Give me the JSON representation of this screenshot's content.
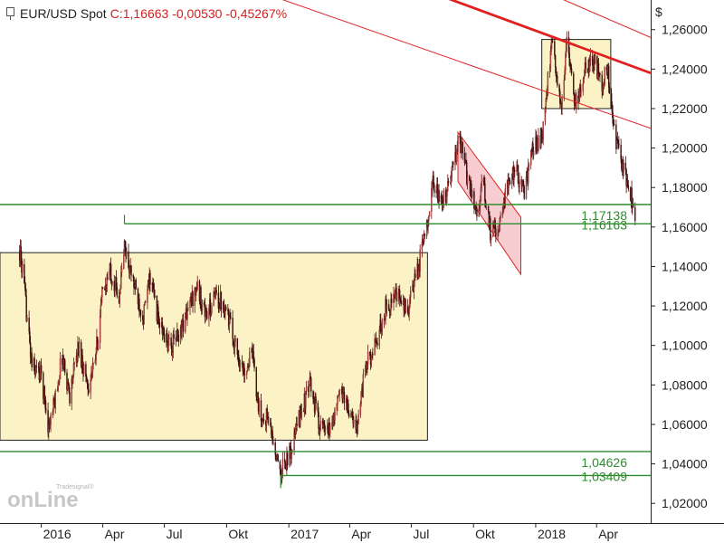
{
  "header": {
    "instrument": "EUR/USD Spot",
    "change": "C:1,16663 -0,00530 -0,45267%"
  },
  "colors": {
    "background": "#ffffff",
    "up_candle": "#6b1a1a",
    "down_candle": "#3a0d0d",
    "level_line": "#2e8b2e",
    "level_label": "#2e8b2e",
    "box_fill": "#fbf3c6",
    "box_stroke": "#222222",
    "channel_fill": "#f5b8bd",
    "trend_line": "#e02020",
    "header_change": "#d42020"
  },
  "watermark": {
    "small": "Tradesignal®",
    "brand": "onLine"
  },
  "chart_data": {
    "type": "candlestick",
    "title": "EUR/USD Spot",
    "ylabel": "$",
    "ylim": [
      1.01,
      1.275
    ],
    "x_range": [
      "2015-11-01",
      "2018-06-20"
    ],
    "y_ticks": [
      {
        "value": 1.02,
        "label": "1,02000"
      },
      {
        "value": 1.04,
        "label": "1,04000"
      },
      {
        "value": 1.06,
        "label": "1,06000"
      },
      {
        "value": 1.08,
        "label": "1,08000"
      },
      {
        "value": 1.1,
        "label": "1,10000"
      },
      {
        "value": 1.12,
        "label": "1,12000"
      },
      {
        "value": 1.14,
        "label": "1,14000"
      },
      {
        "value": 1.16,
        "label": "1,16000"
      },
      {
        "value": 1.18,
        "label": "1,18000"
      },
      {
        "value": 1.2,
        "label": "1,20000"
      },
      {
        "value": 1.22,
        "label": "1,22000"
      },
      {
        "value": 1.24,
        "label": "1,24000"
      },
      {
        "value": 1.26,
        "label": "1,26000"
      }
    ],
    "x_ticks": [
      {
        "date": "2016-01-01",
        "label": "2016"
      },
      {
        "date": "2016-04-01",
        "label": "Apr"
      },
      {
        "date": "2016-07-01",
        "label": "Jul"
      },
      {
        "date": "2016-10-01",
        "label": "Okt"
      },
      {
        "date": "2017-01-01",
        "label": "2017"
      },
      {
        "date": "2017-04-01",
        "label": "Apr"
      },
      {
        "date": "2017-07-01",
        "label": "Jul"
      },
      {
        "date": "2017-10-01",
        "label": "Okt"
      },
      {
        "date": "2018-01-01",
        "label": "2018"
      },
      {
        "date": "2018-04-01",
        "label": "Apr"
      }
    ],
    "price_path": [
      [
        "2015-11-30",
        1.148
      ],
      [
        "2015-12-04",
        1.138
      ],
      [
        "2015-12-18",
        1.09
      ],
      [
        "2016-01-01",
        1.085
      ],
      [
        "2016-01-12",
        1.058
      ],
      [
        "2016-01-20",
        1.07
      ],
      [
        "2016-02-01",
        1.095
      ],
      [
        "2016-02-12",
        1.075
      ],
      [
        "2016-02-25",
        1.1
      ],
      [
        "2016-03-10",
        1.08
      ],
      [
        "2016-03-20",
        1.09
      ],
      [
        "2016-03-31",
        1.125
      ],
      [
        "2016-04-12",
        1.138
      ],
      [
        "2016-04-25",
        1.125
      ],
      [
        "2016-05-03",
        1.15
      ],
      [
        "2016-05-15",
        1.133
      ],
      [
        "2016-05-31",
        1.115
      ],
      [
        "2016-06-10",
        1.135
      ],
      [
        "2016-06-24",
        1.11
      ],
      [
        "2016-07-10",
        1.098
      ],
      [
        "2016-07-25",
        1.108
      ],
      [
        "2016-08-18",
        1.13
      ],
      [
        "2016-09-01",
        1.115
      ],
      [
        "2016-09-15",
        1.125
      ],
      [
        "2016-09-30",
        1.12
      ],
      [
        "2016-10-10",
        1.105
      ],
      [
        "2016-10-25",
        1.087
      ],
      [
        "2016-11-08",
        1.095
      ],
      [
        "2016-11-20",
        1.062
      ],
      [
        "2016-12-01",
        1.064
      ],
      [
        "2016-12-15",
        1.04
      ],
      [
        "2016-12-21",
        1.037
      ],
      [
        "2017-01-03",
        1.045
      ],
      [
        "2017-01-20",
        1.068
      ],
      [
        "2017-02-02",
        1.08
      ],
      [
        "2017-02-15",
        1.06
      ],
      [
        "2017-02-28",
        1.055
      ],
      [
        "2017-03-20",
        1.078
      ],
      [
        "2017-04-10",
        1.057
      ],
      [
        "2017-04-25",
        1.09
      ],
      [
        "2017-05-10",
        1.1
      ],
      [
        "2017-05-25",
        1.12
      ],
      [
        "2017-06-10",
        1.125
      ],
      [
        "2017-06-25",
        1.117
      ],
      [
        "2017-07-12",
        1.14
      ],
      [
        "2017-07-25",
        1.165
      ],
      [
        "2017-08-03",
        1.183
      ],
      [
        "2017-08-15",
        1.17
      ],
      [
        "2017-09-01",
        1.19
      ],
      [
        "2017-09-10",
        1.205
      ],
      [
        "2017-09-22",
        1.185
      ],
      [
        "2017-10-06",
        1.168
      ],
      [
        "2017-10-15",
        1.182
      ],
      [
        "2017-10-26",
        1.158
      ],
      [
        "2017-11-06",
        1.16
      ],
      [
        "2017-11-20",
        1.18
      ],
      [
        "2017-12-01",
        1.19
      ],
      [
        "2017-12-15",
        1.178
      ],
      [
        "2017-12-28",
        1.2
      ],
      [
        "2018-01-10",
        1.205
      ],
      [
        "2018-01-16",
        1.225
      ],
      [
        "2018-01-25",
        1.252
      ],
      [
        "2018-02-08",
        1.222
      ],
      [
        "2018-02-16",
        1.253
      ],
      [
        "2018-03-01",
        1.222
      ],
      [
        "2018-03-15",
        1.24
      ],
      [
        "2018-03-27",
        1.245
      ],
      [
        "2018-04-10",
        1.233
      ],
      [
        "2018-04-17",
        1.24
      ],
      [
        "2018-04-26",
        1.21
      ],
      [
        "2018-05-05",
        1.195
      ],
      [
        "2018-05-15",
        1.185
      ],
      [
        "2018-05-22",
        1.176
      ],
      [
        "2018-05-28",
        1.166
      ]
    ],
    "support_levels": [
      {
        "value": 1.17138,
        "label": "1,17138",
        "from": "2015-11-01"
      },
      {
        "value": 1.16163,
        "label": "1,16163",
        "from": "2016-05-03"
      },
      {
        "value": 1.04626,
        "label": "1,04626",
        "from": "2015-11-01"
      },
      {
        "value": 1.03409,
        "label": "1,03409",
        "from": "2016-12-20"
      }
    ],
    "range_boxes": [
      {
        "from": "2015-11-01",
        "to": "2017-07-25",
        "low": 1.052,
        "high": 1.147
      },
      {
        "from": "2018-01-10",
        "to": "2018-04-22",
        "low": 1.22,
        "high": 1.255
      }
    ],
    "channel": {
      "upper": [
        [
          "2017-09-08",
          1.208
        ],
        [
          "2017-12-10",
          1.165
        ]
      ],
      "lower": [
        [
          "2017-09-08",
          1.183
        ],
        [
          "2017-12-10",
          1.136
        ]
      ]
    },
    "trend_lines": [
      {
        "points": [
          [
            "2017-06-20",
            1.284
          ],
          [
            "2018-06-20",
            1.238
          ]
        ],
        "width": 2.8
      },
      {
        "points": [
          [
            "2017-11-30",
            1.286
          ],
          [
            "2018-06-20",
            1.256
          ]
        ],
        "width": 1.0
      },
      {
        "points": [
          [
            "2016-04-01",
            1.307
          ],
          [
            "2018-06-20",
            1.21
          ]
        ],
        "width": 1.0
      }
    ]
  }
}
